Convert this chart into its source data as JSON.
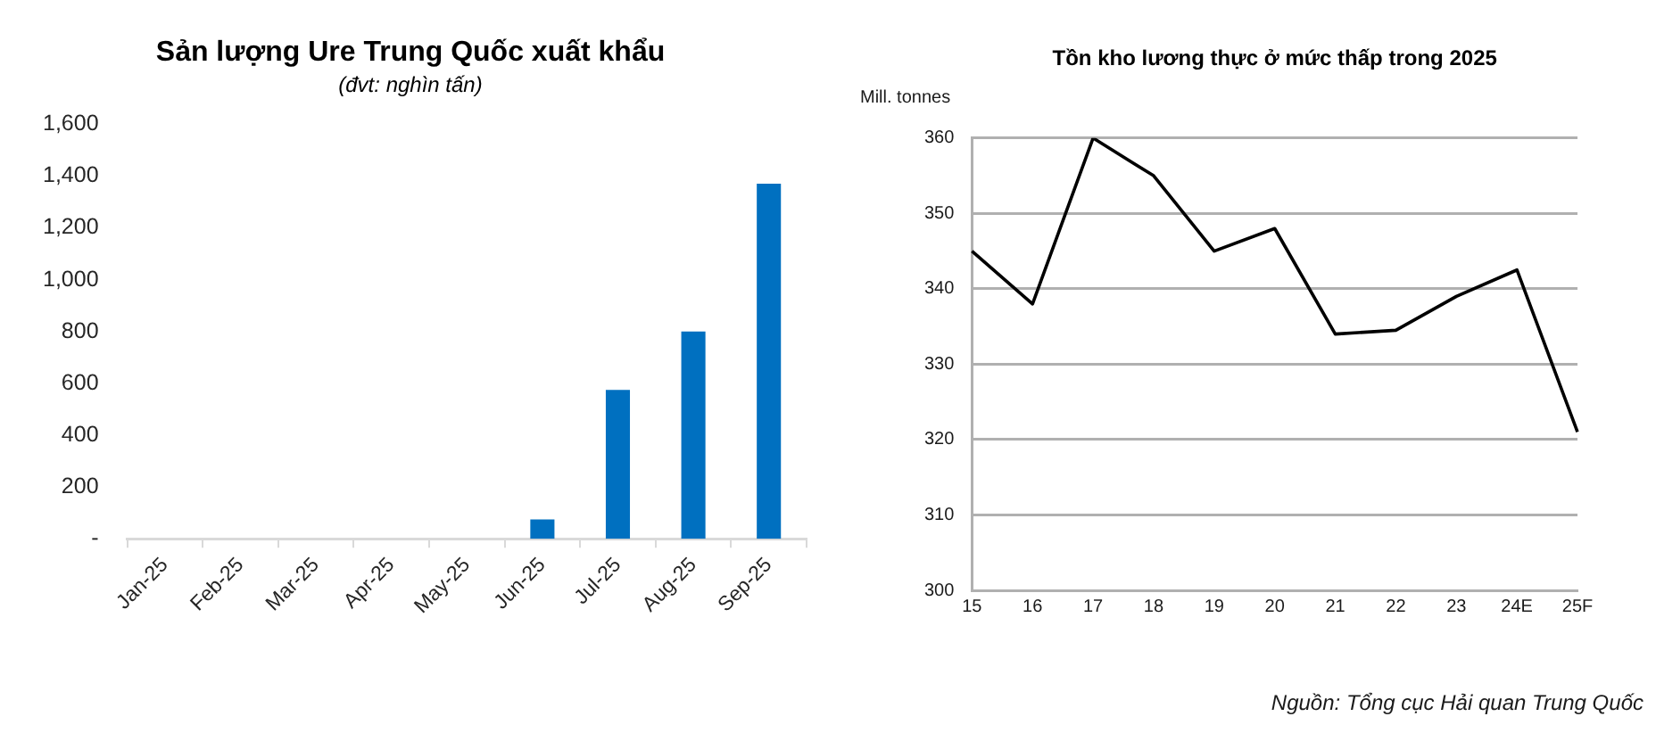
{
  "chart_data": [
    {
      "type": "bar",
      "title": "Sản lượng Ure Trung Quốc xuất khẩu",
      "subtitle": "(đvt: nghìn tấn)",
      "categories": [
        "Jan-25",
        "Feb-25",
        "Mar-25",
        "Apr-25",
        "May-25",
        "Jun-25",
        "Jul-25",
        "Aug-25",
        "Sep-25"
      ],
      "values": [
        0,
        0,
        0,
        0,
        0,
        75,
        575,
        800,
        1370
      ],
      "color": "#0070c0",
      "ylim": [
        0,
        1600
      ],
      "yticks": [
        {
          "value": 0,
          "label": "-"
        },
        200,
        400,
        600,
        800,
        {
          "value": 1000,
          "label": "1,000"
        },
        {
          "value": 1200,
          "label": "1,200"
        },
        {
          "value": 1400,
          "label": "1,400"
        },
        {
          "value": 1600,
          "label": "1,600"
        }
      ],
      "grid": false,
      "legend": false
    },
    {
      "type": "line",
      "title": "Tồn kho lương thực ở mức thấp trong 2025",
      "ylabel": "Mill. tonnes",
      "categories": [
        "15",
        "16",
        "17",
        "18",
        "19",
        "20",
        "21",
        "22",
        "23",
        "24E",
        "25F"
      ],
      "values": [
        345,
        338,
        360,
        355,
        345,
        348,
        334,
        334.5,
        339,
        342.5,
        321
      ],
      "color": "#000000",
      "ylim": [
        300,
        360
      ],
      "yticks": [
        300,
        310,
        320,
        330,
        340,
        350,
        360
      ],
      "grid": "y",
      "legend": false,
      "annotations": [
        "Nguồn: Tổng cục Hải quan Trung Quốc"
      ]
    }
  ]
}
